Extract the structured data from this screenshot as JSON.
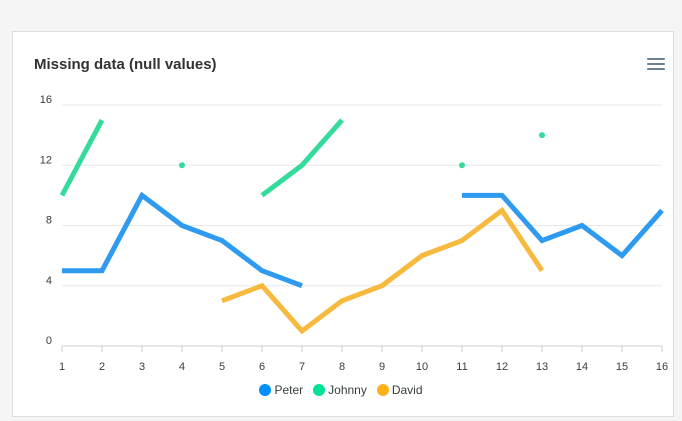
{
  "title": "Missing data (null values)",
  "menu_icon": "hamburger-menu-icon",
  "chart_data": {
    "type": "line",
    "title": "Missing data (null values)",
    "xlabel": "",
    "ylabel": "",
    "x": [
      1,
      2,
      3,
      4,
      5,
      6,
      7,
      8,
      9,
      10,
      11,
      12,
      13,
      14,
      15,
      16
    ],
    "xlim": [
      1,
      16
    ],
    "ylim": [
      0,
      16
    ],
    "yticks": [
      0,
      4,
      8,
      12,
      16
    ],
    "grid": "horizontal",
    "legend": "bottom-center",
    "series": [
      {
        "name": "Peter",
        "color": "#2e9bf0",
        "legend_color": "#008ffb",
        "values": [
          5,
          5,
          10,
          8,
          7,
          5,
          4,
          null,
          null,
          null,
          10,
          10,
          7,
          8,
          6,
          9
        ]
      },
      {
        "name": "Johnny",
        "color": "#34dc9b",
        "legend_color": "#00e396",
        "values": [
          10,
          15,
          null,
          12,
          null,
          10,
          12,
          15,
          null,
          null,
          12,
          null,
          14,
          null,
          null,
          null
        ]
      },
      {
        "name": "David",
        "color": "#f7b93e",
        "legend_color": "#feb019",
        "values": [
          null,
          null,
          null,
          null,
          3,
          4,
          1,
          3,
          4,
          6,
          7,
          9,
          5,
          null,
          null,
          null
        ]
      }
    ]
  }
}
